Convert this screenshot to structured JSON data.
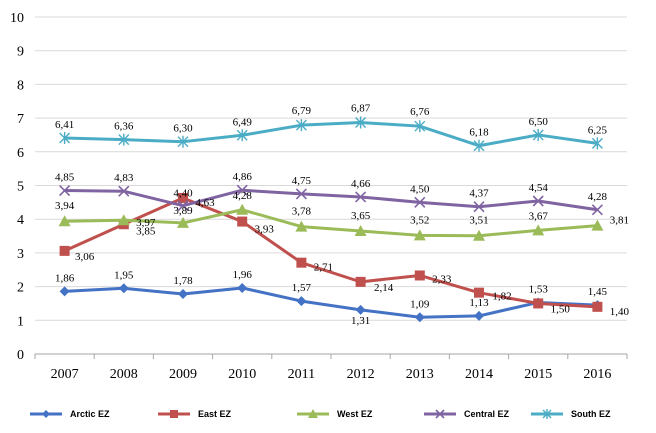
{
  "chart_data": {
    "type": "line",
    "x": [
      "2007",
      "2008",
      "2009",
      "2010",
      "2011",
      "2012",
      "2013",
      "2014",
      "2015",
      "2016"
    ],
    "ylim": [
      0,
      10
    ],
    "yticks": [
      "0",
      "1",
      "2",
      "3",
      "4",
      "5",
      "6",
      "7",
      "8",
      "9",
      "10"
    ],
    "grid": true,
    "legend_position": "bottom",
    "series": [
      {
        "name": "Arctic EZ",
        "color": "#4472C4",
        "marker": "diamond",
        "values": [
          1.86,
          1.95,
          1.78,
          1.96,
          1.57,
          1.31,
          1.09,
          1.13,
          1.53,
          1.45
        ],
        "labels": [
          "1,86",
          "1,95",
          "1,78",
          "1,96",
          "1,57",
          "1,31",
          "1,09",
          "1,13",
          "1,53",
          "1,45"
        ]
      },
      {
        "name": "East EZ",
        "color": "#C0504D",
        "marker": "square",
        "values": [
          3.06,
          3.85,
          4.63,
          3.93,
          2.71,
          2.14,
          2.33,
          1.82,
          1.5,
          1.4
        ],
        "labels": [
          "3,06",
          "3,85",
          "4,63",
          "3,93",
          "2,71",
          "2,14",
          "2,33",
          "1,82",
          "1,50",
          "1,40"
        ]
      },
      {
        "name": "West EZ",
        "color": "#9BBB59",
        "marker": "triangle",
        "values": [
          3.94,
          3.97,
          3.89,
          4.28,
          3.78,
          3.65,
          3.52,
          3.51,
          3.67,
          3.81
        ],
        "labels": [
          "3,94",
          "3,97",
          "3,89",
          "4,28",
          "3,78",
          "3,65",
          "3,52",
          "3,51",
          "3,67",
          "3,81"
        ]
      },
      {
        "name": "Central EZ",
        "color": "#8064A2",
        "marker": "x",
        "values": [
          4.85,
          4.83,
          4.4,
          4.86,
          4.75,
          4.66,
          4.5,
          4.37,
          4.54,
          4.28
        ],
        "labels": [
          "4,85",
          "4,83",
          "4,40",
          "4,86",
          "4,75",
          "4,66",
          "4,50",
          "4,37",
          "4,54",
          "4,28"
        ]
      },
      {
        "name": "South EZ",
        "color": "#4BACC6",
        "marker": "star",
        "values": [
          6.41,
          6.36,
          6.3,
          6.49,
          6.79,
          6.87,
          6.76,
          6.18,
          6.5,
          6.25
        ],
        "labels": [
          "6,41",
          "6,36",
          "6,30",
          "6,49",
          "6,79",
          "6,87",
          "6,76",
          "6,18",
          "6,50",
          "6,25"
        ]
      }
    ]
  }
}
